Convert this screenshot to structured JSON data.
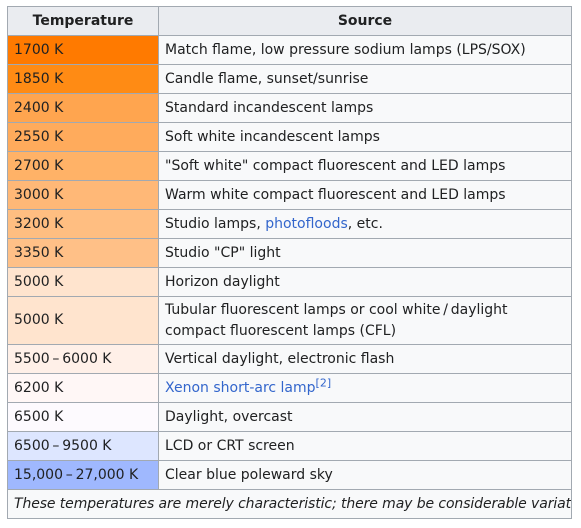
{
  "table": {
    "header": {
      "temperature": "Temperature",
      "source": "Source"
    },
    "rows": [
      {
        "temp": "1700 K",
        "color": "#ff7a00",
        "src_parts": [
          {
            "t": "Match flame, low pressure sodium lamps (LPS/SOX)"
          }
        ]
      },
      {
        "temp": "1850 K",
        "color": "#ff8b14",
        "src_parts": [
          {
            "t": "Candle flame, sunset/sunrise"
          }
        ]
      },
      {
        "temp": "2400 K",
        "color": "#ffa54f",
        "src_parts": [
          {
            "t": "Standard incandescent lamps"
          }
        ]
      },
      {
        "temp": "2550 K",
        "color": "#ffab5c",
        "src_parts": [
          {
            "t": "Soft white incandescent lamps"
          }
        ]
      },
      {
        "temp": "2700 K",
        "color": "#ffb267",
        "src_parts": [
          {
            "t": "\"Soft white\" compact fluorescent and LED lamps"
          }
        ]
      },
      {
        "temp": "3000 K",
        "color": "#ffb877",
        "src_parts": [
          {
            "t": "Warm white compact fluorescent and LED lamps"
          }
        ]
      },
      {
        "temp": "3200 K",
        "color": "#ffbe81",
        "src_parts": [
          {
            "t": "Studio lamps, "
          },
          {
            "t": "photofloods",
            "link": true
          },
          {
            "t": ", etc."
          }
        ]
      },
      {
        "temp": "3350 K",
        "color": "#ffc087",
        "src_parts": [
          {
            "t": "Studio \"CP\" light"
          }
        ]
      },
      {
        "temp": "5000 K",
        "color": "#ffe4ce",
        "src_parts": [
          {
            "t": "Horizon daylight"
          }
        ]
      },
      {
        "temp": "5000 K",
        "color": "#ffe4ce",
        "two_line": true,
        "src_parts": [
          {
            "t": "Tubular fluorescent lamps or cool white / daylight compact fluorescent lamps (CFL)"
          }
        ]
      },
      {
        "temp": "5500 – 6000 K",
        "color": "#fff0e8",
        "src_parts": [
          {
            "t": "Vertical daylight, electronic flash"
          }
        ]
      },
      {
        "temp": "6200 K",
        "color": "#fff7f6",
        "src_parts": [
          {
            "t": "Xenon short-arc lamp",
            "link": true
          },
          {
            "t": "[2]",
            "sup": true,
            "link": true
          }
        ]
      },
      {
        "temp": "6500 K",
        "color": "#fdfafe",
        "src_parts": [
          {
            "t": "Daylight, overcast"
          }
        ]
      },
      {
        "temp": "6500 – 9500 K",
        "color": "#dde6ff",
        "src_parts": [
          {
            "t": "LCD or CRT screen"
          }
        ]
      },
      {
        "temp": "15,000 – 27,000 K",
        "color": "#9fb8fe",
        "src_parts": [
          {
            "t": "Clear blue poleward sky"
          }
        ]
      }
    ],
    "note": "These temperatures are merely characteristic; there may be considerable variation"
  }
}
